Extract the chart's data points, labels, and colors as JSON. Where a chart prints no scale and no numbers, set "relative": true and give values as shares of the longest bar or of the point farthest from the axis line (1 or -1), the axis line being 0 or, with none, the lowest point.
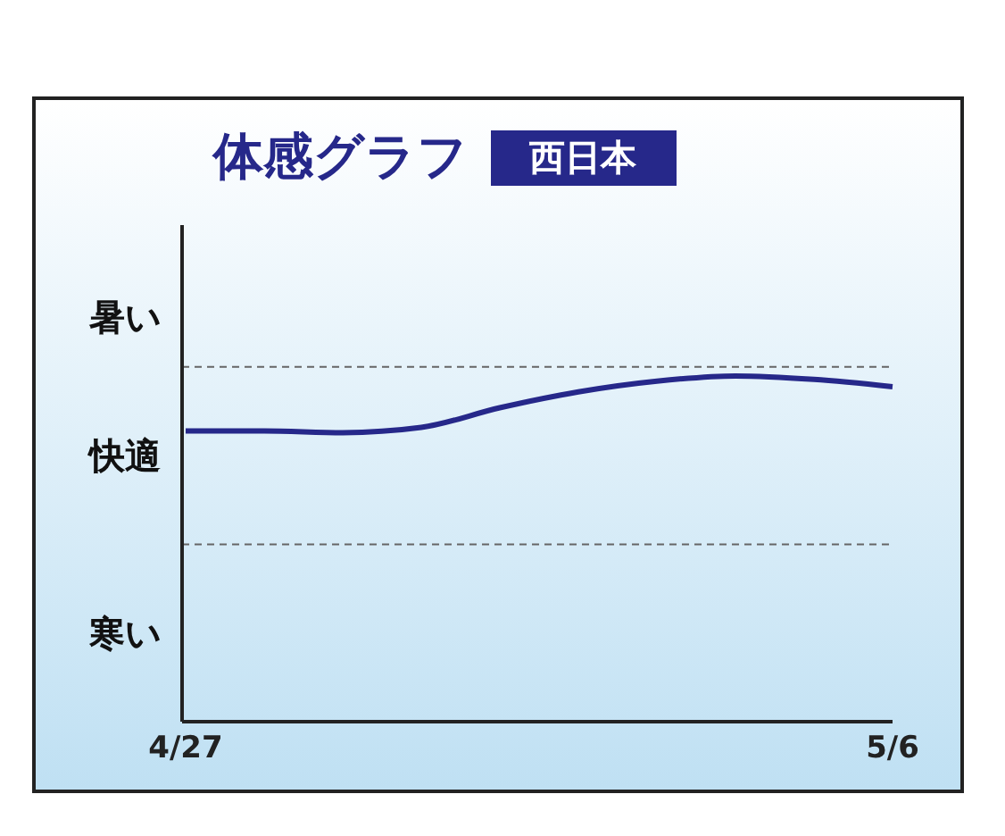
{
  "chart_data": {
    "type": "line",
    "title": "体感グラフ",
    "subtitle": "西日本",
    "relative": true,
    "categories": [
      "4/27",
      null,
      null,
      null,
      null,
      null,
      null,
      null,
      null,
      "5/6"
    ],
    "series": [
      {
        "color": "#26288a",
        "values": [
          0.841,
          0.841,
          0.836,
          0.851,
          0.908,
          0.954,
          0.985,
          1,
          0.99,
          0.969
        ]
      }
    ],
    "annotations": [
      "暑い",
      "快適",
      "寒い"
    ],
    "ref_lines": [
      {
        "axis": "y",
        "value": 0.513,
        "line_style": "dashed",
        "color": "#666666"
      },
      {
        "axis": "y",
        "value": 1.026,
        "line_style": "dashed",
        "color": "#666666"
      }
    ],
    "grid": false,
    "legend": false,
    "marker": "none",
    "line_style": "solid"
  }
}
